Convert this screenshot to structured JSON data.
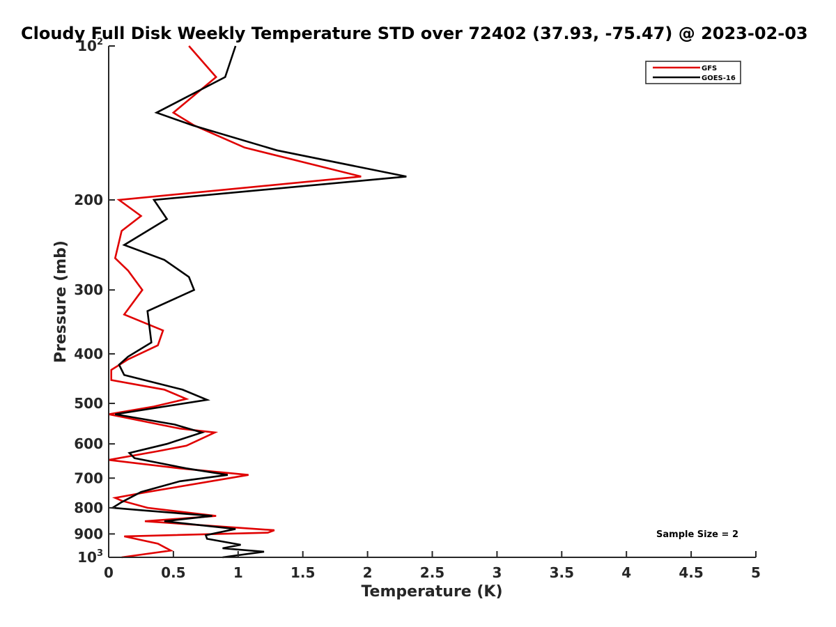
{
  "chart_data": {
    "type": "line",
    "title": "Cloudy Full Disk Weekly Temperature STD over 72402 (37.93, -75.47) @ 2023-02-03",
    "xlabel": "Temperature (K)",
    "ylabel": "Pressure (mb)",
    "xlim": [
      0,
      5
    ],
    "ylim": [
      1000,
      100
    ],
    "yscale": "log",
    "grid": false,
    "legend_position": "top-right",
    "x_ticks": [
      "0",
      "0.5",
      "1",
      "1.5",
      "2",
      "2.5",
      "3",
      "3.5",
      "4",
      "4.5",
      "5"
    ],
    "y_ticks": [
      {
        "value": 100,
        "base": "10",
        "exp": "2"
      },
      {
        "value": 200,
        "label": "200"
      },
      {
        "value": 300,
        "label": "300"
      },
      {
        "value": 400,
        "label": "400"
      },
      {
        "value": 500,
        "label": "500"
      },
      {
        "value": 600,
        "label": "600"
      },
      {
        "value": 700,
        "label": "700"
      },
      {
        "value": 800,
        "label": "800"
      },
      {
        "value": 900,
        "label": "900"
      },
      {
        "value": 1000,
        "base": "10",
        "exp": "3"
      }
    ],
    "annotation": "Sample Size = 2",
    "series": [
      {
        "name": "GFS",
        "color": "#e00000",
        "points": [
          [
            0.62,
            100
          ],
          [
            0.83,
            115
          ],
          [
            0.5,
            135
          ],
          [
            0.66,
            143
          ],
          [
            1.05,
            158
          ],
          [
            1.95,
            180
          ],
          [
            0.08,
            200
          ],
          [
            0.25,
            215
          ],
          [
            0.1,
            230
          ],
          [
            0.05,
            260
          ],
          [
            0.15,
            275
          ],
          [
            0.26,
            300
          ],
          [
            0.12,
            335
          ],
          [
            0.42,
            360
          ],
          [
            0.38,
            385
          ],
          [
            0.15,
            410
          ],
          [
            0.02,
            430
          ],
          [
            0.02,
            450
          ],
          [
            0.43,
            470
          ],
          [
            0.6,
            490
          ],
          [
            0.35,
            507
          ],
          [
            0.0,
            525
          ],
          [
            0.55,
            560
          ],
          [
            0.82,
            570
          ],
          [
            0.6,
            605
          ],
          [
            0.38,
            620
          ],
          [
            0.0,
            645
          ],
          [
            0.55,
            670
          ],
          [
            1.08,
            690
          ],
          [
            0.3,
            745
          ],
          [
            0.05,
            765
          ],
          [
            0.1,
            775
          ],
          [
            0.3,
            800
          ],
          [
            0.83,
            830
          ],
          [
            0.28,
            850
          ],
          [
            0.85,
            870
          ],
          [
            1.28,
            885
          ],
          [
            1.23,
            895
          ],
          [
            0.12,
            910
          ],
          [
            0.38,
            940
          ],
          [
            0.48,
            970
          ],
          [
            0.1,
            1000
          ]
        ]
      },
      {
        "name": "GOES-16",
        "color": "#000000",
        "points": [
          [
            0.98,
            100
          ],
          [
            0.9,
            115
          ],
          [
            0.37,
            135
          ],
          [
            0.65,
            143
          ],
          [
            1.3,
            160
          ],
          [
            2.3,
            180
          ],
          [
            0.35,
            200
          ],
          [
            0.45,
            218
          ],
          [
            0.12,
            245
          ],
          [
            0.43,
            262
          ],
          [
            0.62,
            283
          ],
          [
            0.66,
            300
          ],
          [
            0.3,
            330
          ],
          [
            0.33,
            380
          ],
          [
            0.15,
            405
          ],
          [
            0.08,
            420
          ],
          [
            0.12,
            440
          ],
          [
            0.57,
            470
          ],
          [
            0.76,
            492
          ],
          [
            0.05,
            525
          ],
          [
            0.51,
            550
          ],
          [
            0.72,
            570
          ],
          [
            0.45,
            600
          ],
          [
            0.16,
            625
          ],
          [
            0.2,
            640
          ],
          [
            0.6,
            670
          ],
          [
            0.92,
            690
          ],
          [
            0.55,
            710
          ],
          [
            0.25,
            745
          ],
          [
            0.1,
            780
          ],
          [
            0.03,
            800
          ],
          [
            0.28,
            810
          ],
          [
            0.8,
            830
          ],
          [
            0.43,
            850
          ],
          [
            0.98,
            880
          ],
          [
            0.75,
            905
          ],
          [
            0.76,
            920
          ],
          [
            1.02,
            945
          ],
          [
            0.88,
            960
          ],
          [
            1.2,
            975
          ],
          [
            0.88,
            1000
          ]
        ]
      }
    ]
  }
}
